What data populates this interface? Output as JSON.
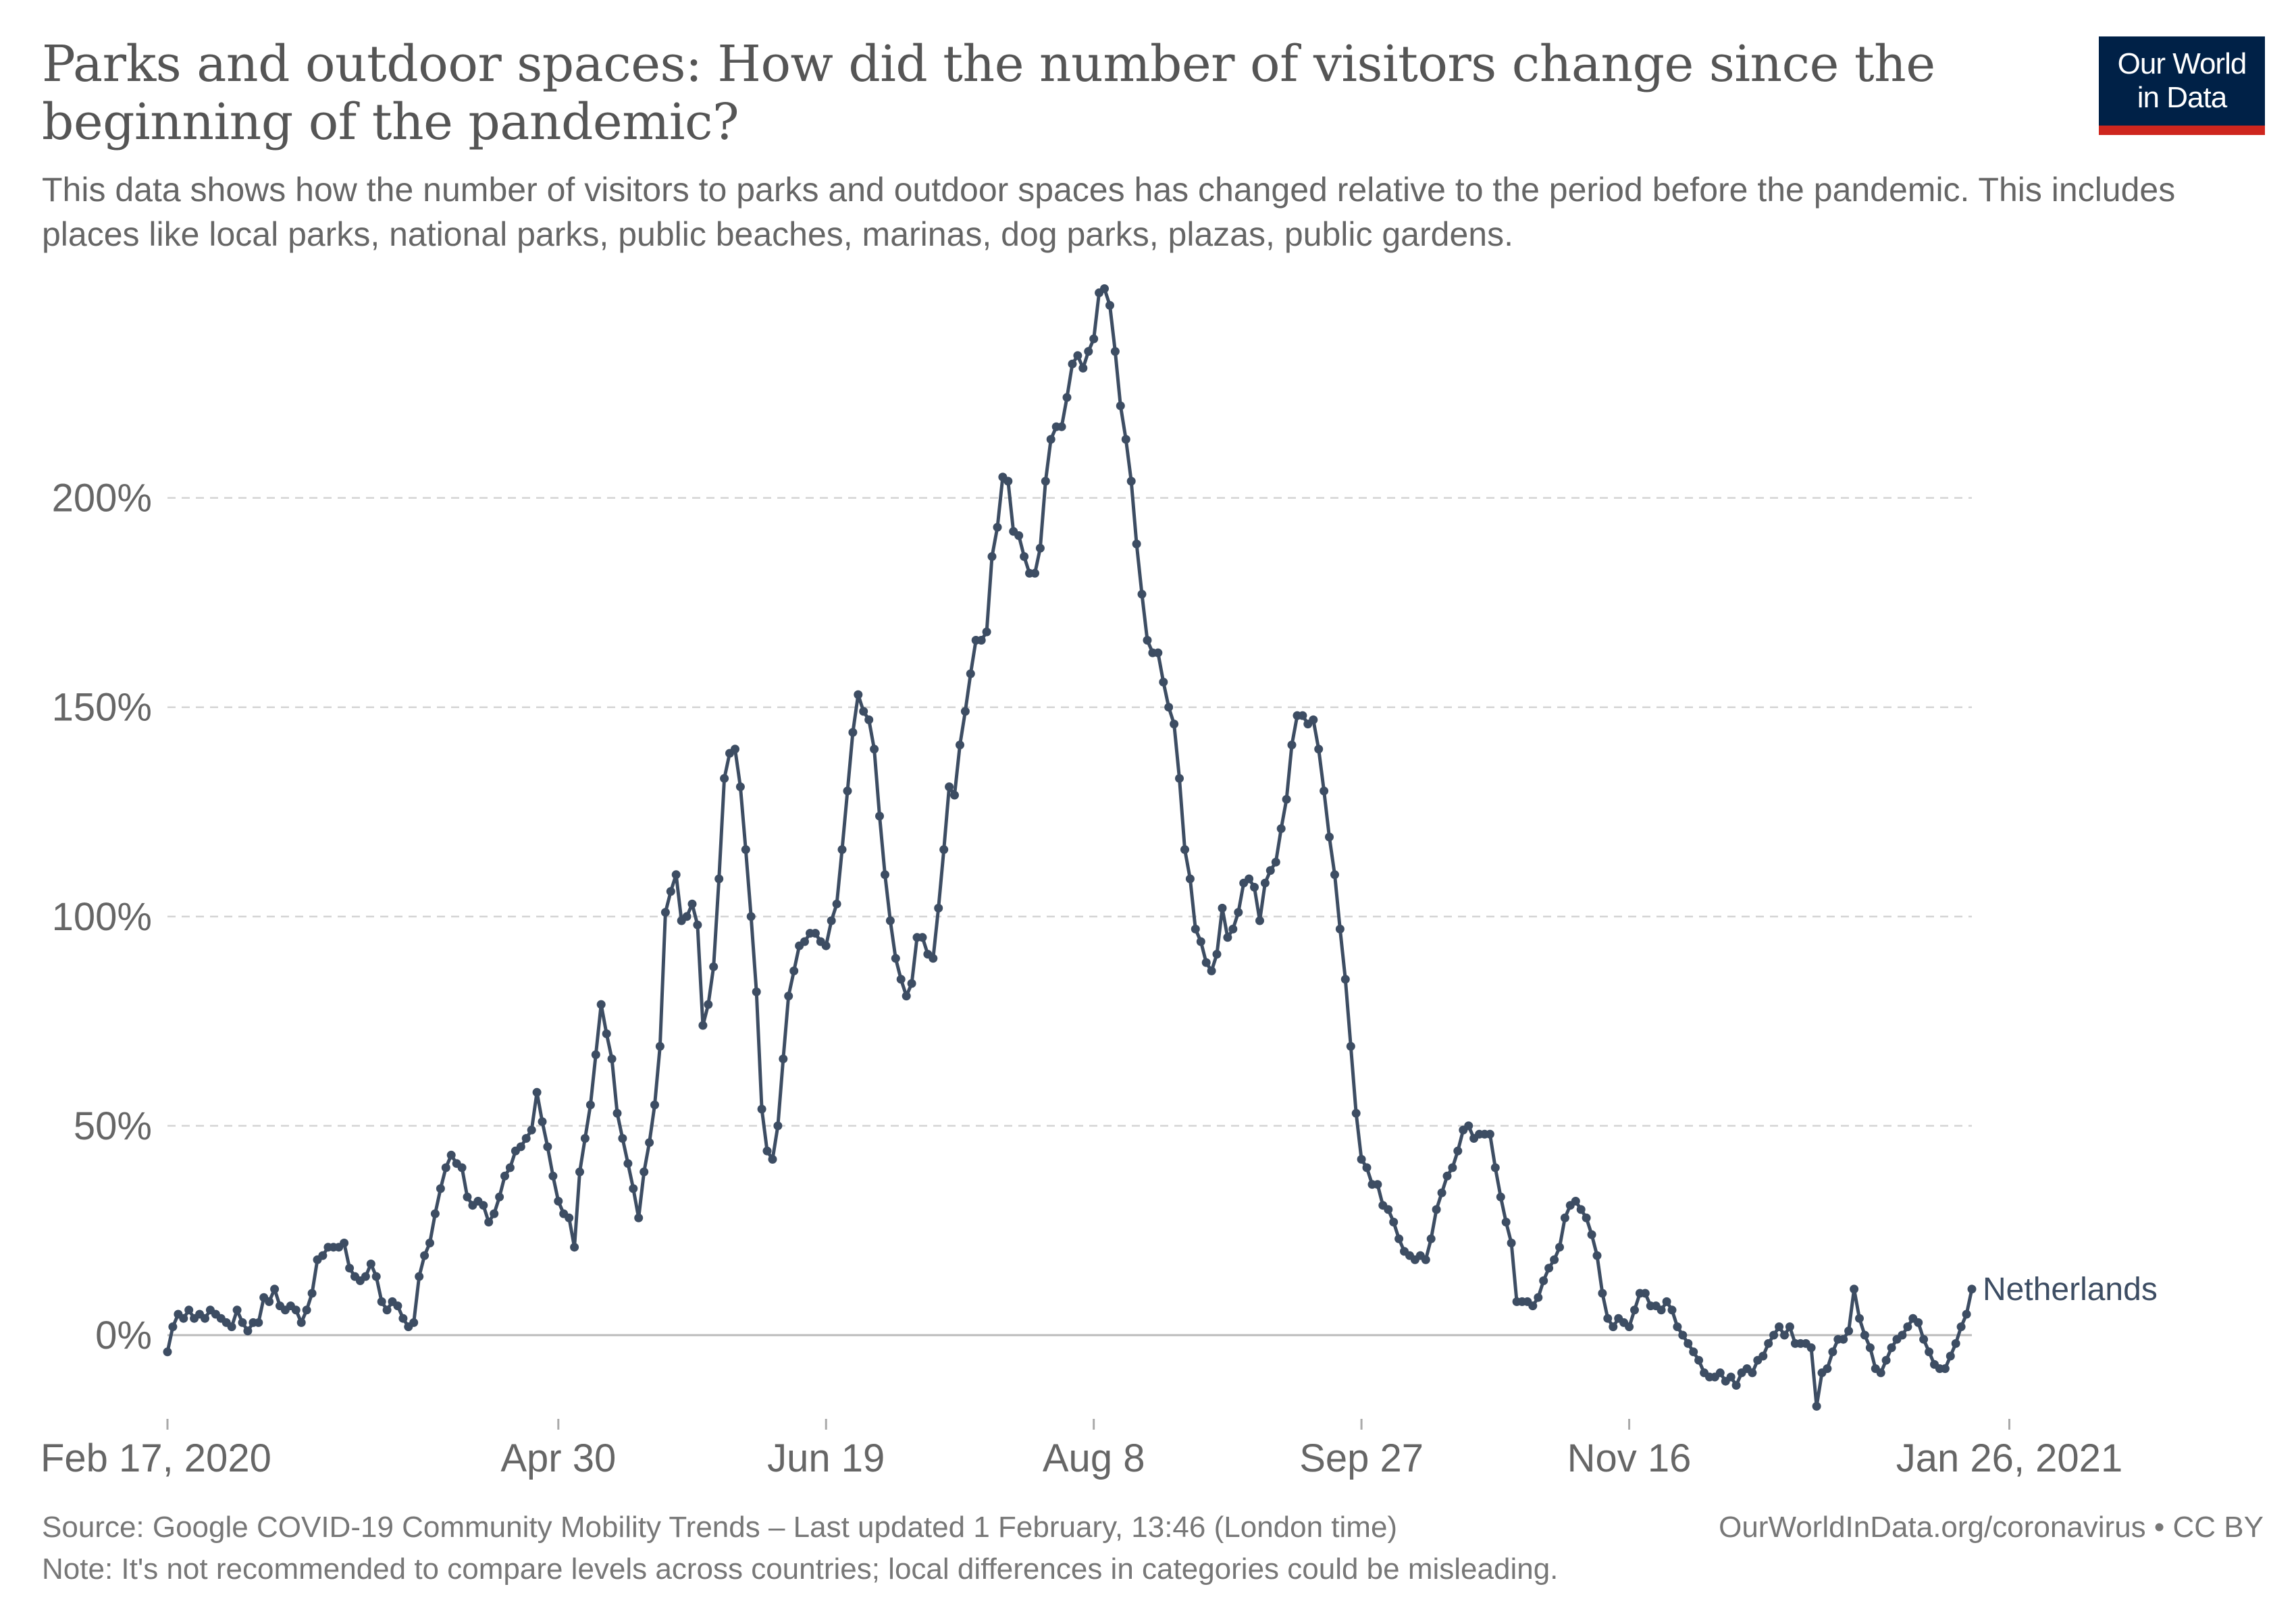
{
  "header": {
    "title": "Parks and outdoor spaces: How did the number of visitors change since the beginning of the pandemic?",
    "subtitle": "This data shows how the number of visitors to parks and outdoor spaces has changed relative to the period before the pandemic. This includes places like local parks, national parks, public beaches, marinas, dog parks, plazas, public gardens.",
    "logo_line1": "Our World",
    "logo_line2": "in Data",
    "logo_colors": {
      "background": "#002147",
      "stripe": "#ce261e"
    }
  },
  "footer": {
    "source": "Source: Google COVID-19 Community Mobility Trends – Last updated 1 February, 13:46 (London time)",
    "credit": "OurWorldInData.org/coronavirus • CC BY",
    "note": "Note: It's not recommended to compare levels across countries; local differences in categories could be misleading."
  },
  "chart_data": {
    "type": "line",
    "title": "Parks and outdoor spaces: How did the number of visitors change since the beginning of the pandemic?",
    "xlabel": "",
    "ylabel": "",
    "ylim": [
      -20,
      248
    ],
    "y_ticks": [
      0,
      50,
      100,
      150,
      200
    ],
    "y_tick_labels": [
      "0%",
      "50%",
      "100%",
      "150%",
      "200%"
    ],
    "x_ticks": [
      {
        "label": "Feb 17, 2020",
        "day": 0
      },
      {
        "label": "Apr 30",
        "day": 73
      },
      {
        "label": "Jun 19",
        "day": 123
      },
      {
        "label": "Aug 8",
        "day": 173
      },
      {
        "label": "Sep 27",
        "day": 223
      },
      {
        "label": "Nov 16",
        "day": 273
      },
      {
        "label": "Jan 26, 2021",
        "day": 344
      }
    ],
    "grid": true,
    "line_color": "#3d4d63",
    "series": [
      {
        "name": "Netherlands",
        "start_date": "2020-02-17",
        "values": [
          -4,
          2,
          5,
          4,
          6,
          4,
          5,
          4,
          6,
          5,
          4,
          3,
          2,
          6,
          3,
          1,
          3,
          3,
          9,
          8,
          11,
          7,
          6,
          7,
          6,
          3,
          6,
          10,
          18,
          19,
          21,
          21,
          21,
          22,
          16,
          14,
          13,
          14,
          17,
          14,
          8,
          6,
          8,
          7,
          4,
          2,
          3,
          14,
          19,
          22,
          29,
          35,
          40,
          43,
          41,
          40,
          33,
          31,
          32,
          31,
          27,
          29,
          33,
          38,
          40,
          44,
          45,
          47,
          49,
          58,
          51,
          45,
          38,
          32,
          29,
          28,
          21,
          39,
          47,
          55,
          67,
          79,
          72,
          66,
          53,
          47,
          41,
          35,
          28,
          39,
          46,
          55,
          69,
          101,
          106,
          110,
          99,
          100,
          103,
          98,
          74,
          79,
          88,
          109,
          133,
          139,
          140,
          131,
          116,
          100,
          82,
          54,
          44,
          42,
          50,
          66,
          81,
          87,
          93,
          94,
          96,
          96,
          94,
          93,
          99,
          103,
          116,
          130,
          144,
          153,
          149,
          147,
          140,
          124,
          110,
          99,
          90,
          85,
          81,
          84,
          95,
          95,
          91,
          90,
          102,
          116,
          131,
          129,
          141,
          149,
          158,
          166,
          166,
          168,
          186,
          193,
          205,
          204,
          192,
          191,
          186,
          182,
          182,
          188,
          204,
          214,
          217,
          217,
          224,
          232,
          234,
          231,
          235,
          238,
          249,
          250,
          246,
          235,
          222,
          214,
          204,
          189,
          177,
          166,
          163,
          163,
          156,
          150,
          146,
          133,
          116,
          109,
          97,
          94,
          89,
          87,
          91,
          102,
          95,
          97,
          101,
          108,
          109,
          107,
          99,
          108,
          111,
          113,
          121,
          128,
          141,
          148,
          148,
          146,
          147,
          140,
          130,
          119,
          110,
          97,
          85,
          69,
          53,
          42,
          40,
          36,
          36,
          31,
          30,
          27,
          23,
          20,
          19,
          18,
          19,
          18,
          23,
          30,
          34,
          38,
          40,
          44,
          49,
          50,
          47,
          48,
          48,
          48,
          40,
          33,
          27,
          22,
          8,
          8,
          8,
          7,
          9,
          13,
          16,
          18,
          21,
          28,
          31,
          32,
          30,
          28,
          24,
          19,
          10,
          4,
          2,
          4,
          3,
          2,
          6,
          10,
          10,
          7,
          7,
          6,
          8,
          6,
          2,
          0,
          -2,
          -4,
          -6,
          -9,
          -10,
          -10,
          -9,
          -11,
          -10,
          -12,
          -9,
          -8,
          -9,
          -6,
          -5,
          -2,
          0,
          2,
          0,
          2,
          -2,
          -2,
          -2,
          -3,
          -17,
          -9,
          -8,
          -4,
          -1,
          -1,
          1,
          11,
          4,
          0,
          -3,
          -8,
          -9,
          -6,
          -3,
          -1,
          0,
          2,
          4,
          3,
          -1,
          -4,
          -7,
          -8,
          -8,
          -5,
          -2,
          2,
          5,
          11
        ]
      }
    ]
  }
}
